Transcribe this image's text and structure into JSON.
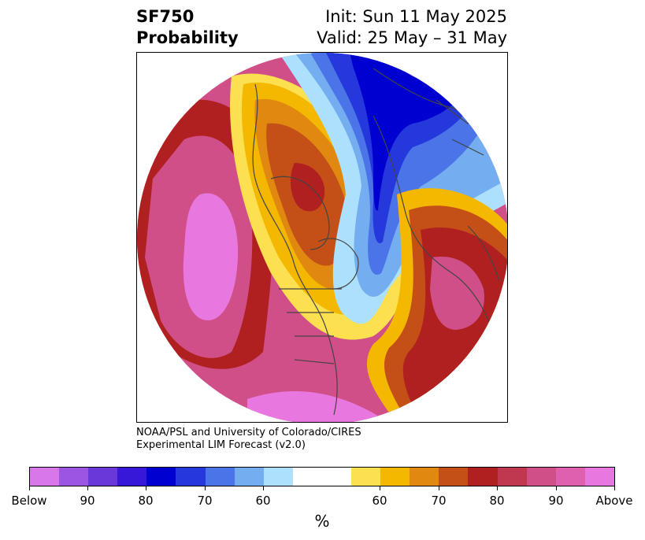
{
  "header": {
    "variable": "SF750",
    "product": "Probability",
    "init": "Init: Sun 11 May 2025",
    "valid": "Valid: 25 May – 31 May"
  },
  "credit": {
    "line1": "NOAA/PSL and University of Colorado/CIRES",
    "line2": "Experimental LIM Forecast (v2.0)"
  },
  "colorbar": {
    "colors": [
      "#d878e8",
      "#9b55e0",
      "#6a38d8",
      "#3818d8",
      "#0000d0",
      "#2438dc",
      "#4a74e8",
      "#74aef0",
      "#ace0fc",
      "#ffffff",
      "#ffffff",
      "#fde050",
      "#f4b800",
      "#e08810",
      "#c45018",
      "#b02020",
      "#c03850",
      "#d04f88",
      "#e060b0",
      "#e878e0"
    ],
    "tick_labels": [
      "Below",
      "90",
      "80",
      "70",
      "60",
      "60",
      "70",
      "80",
      "90",
      "Above"
    ],
    "unit": "%"
  },
  "map": {
    "projection": "north polar stereographic",
    "field": "SF750 probability",
    "colors": {
      "above_high": "#e878e0",
      "above_90": "#d04f88",
      "above_80": "#b02020",
      "above_75": "#c45018",
      "above_70": "#e08810",
      "above_65": "#f4b800",
      "above_60": "#fde050",
      "below_60": "#ace0fc",
      "below_65": "#74aef0",
      "below_70": "#4a74e8",
      "below_80": "#2438dc",
      "below_90": "#0000d0",
      "below_high": "#9b55e0",
      "coastline": "#444444"
    }
  }
}
